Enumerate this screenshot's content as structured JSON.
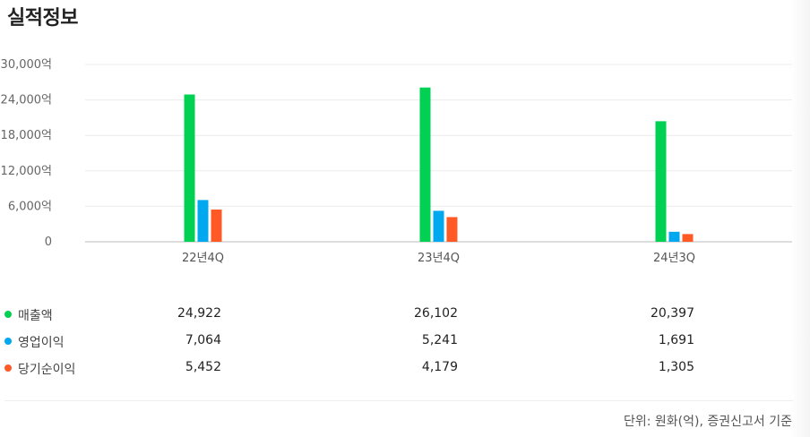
{
  "page": {
    "title": "실적정보"
  },
  "chart_data": {
    "type": "bar",
    "categories": [
      "22년4Q",
      "23년4Q",
      "24년3Q"
    ],
    "series": [
      {
        "name": "매출액",
        "color": "#00d152",
        "values": [
          24922,
          26102,
          20397
        ]
      },
      {
        "name": "영업이익",
        "color": "#00a8f0",
        "values": [
          7064,
          5241,
          1691
        ]
      },
      {
        "name": "당기순이익",
        "color": "#ff5a26",
        "values": [
          5452,
          4179,
          1305
        ]
      }
    ],
    "y_ticks": [
      "30,000억",
      "24,000억",
      "18,000억",
      "12,000억",
      "6,000억",
      "0"
    ],
    "ylim": [
      0,
      30000
    ],
    "grid": true
  },
  "table": {
    "rows": [
      {
        "name": "매출액",
        "color": "#00d152",
        "values": [
          "24,922",
          "26,102",
          "20,397"
        ]
      },
      {
        "name": "영업이익",
        "color": "#00a8f0",
        "values": [
          "7,064",
          "5,241",
          "1,691"
        ]
      },
      {
        "name": "당기순이익",
        "color": "#ff5a26",
        "values": [
          "5,452",
          "4,179",
          "1,305"
        ]
      }
    ]
  },
  "footer": {
    "unit_note": "단위: 원화(억), 증권신고서 기준"
  }
}
